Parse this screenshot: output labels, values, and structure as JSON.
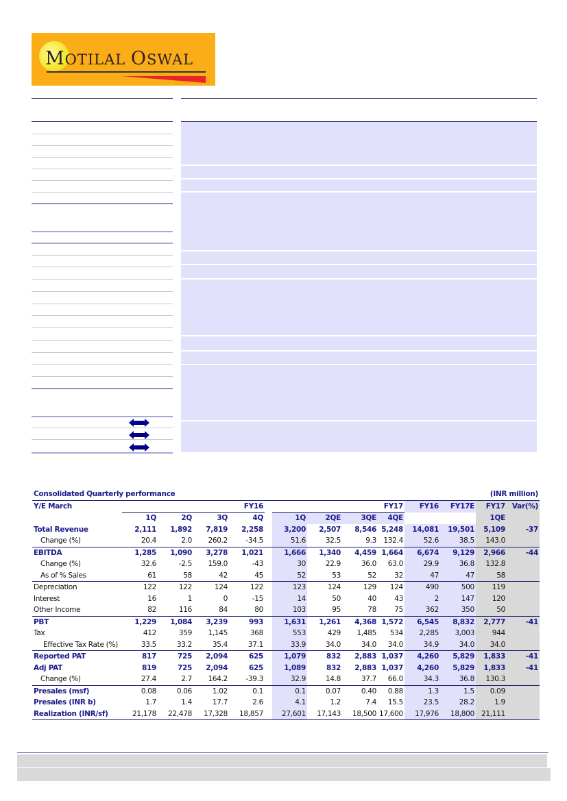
{
  "logo": {
    "text": "Motilal Oswal",
    "brand_color": "#fbad18"
  },
  "table": {
    "title": "Consolidated Quarterly performance",
    "unit": "(INR million)",
    "ye_label": "Y/E March",
    "groups": {
      "fy16": "FY16",
      "fy17": "FY17",
      "fy16_annual": "FY16",
      "fy17e": "FY17E",
      "fy17_col": "FY17",
      "var": "Var(%)"
    },
    "subheaders": [
      "1Q",
      "2Q",
      "3Q",
      "4Q",
      "1Q",
      "2QE",
      "3QE",
      "4QE",
      "",
      "",
      "1QE",
      ""
    ],
    "rows": [
      {
        "label": "Total Revenue",
        "values": [
          "2,111",
          "1,892",
          "7,819",
          "2,258",
          "3,200",
          "2,507",
          "8,546",
          "5,248",
          "14,081",
          "19,501",
          "5,109",
          "-37"
        ]
      },
      {
        "label": "Change (%)",
        "values": [
          "20.4",
          "2.0",
          "260.2",
          "-34.5",
          "51.6",
          "32.5",
          "9.3",
          "132.4",
          "52.6",
          "38.5",
          "143.0",
          ""
        ]
      },
      {
        "label": "EBITDA",
        "values": [
          "1,285",
          "1,090",
          "3,278",
          "1,021",
          "1,666",
          "1,340",
          "4,459",
          "1,664",
          "6,674",
          "9,129",
          "2,966",
          "-44"
        ]
      },
      {
        "label": "Change (%)",
        "values": [
          "32.6",
          "-2.5",
          "159.0",
          "-43",
          "30",
          "22.9",
          "36.0",
          "63.0",
          "29.9",
          "36.8",
          "132.8",
          ""
        ]
      },
      {
        "label": "As of % Sales",
        "values": [
          "61",
          "58",
          "42",
          "45",
          "52",
          "53",
          "52",
          "32",
          "47",
          "47",
          "58",
          ""
        ]
      },
      {
        "label": "Depreciation",
        "values": [
          "122",
          "122",
          "124",
          "122",
          "123",
          "124",
          "129",
          "124",
          "490",
          "500",
          "119",
          ""
        ]
      },
      {
        "label": "Interest",
        "values": [
          "16",
          "1",
          "0",
          "-15",
          "14",
          "50",
          "40",
          "43",
          "2",
          "147",
          "120",
          ""
        ]
      },
      {
        "label": "Other Income",
        "values": [
          "82",
          "116",
          "84",
          "80",
          "103",
          "95",
          "78",
          "75",
          "362",
          "350",
          "50",
          ""
        ]
      },
      {
        "label": "PBT",
        "values": [
          "1,229",
          "1,084",
          "3,239",
          "993",
          "1,631",
          "1,261",
          "4,368",
          "1,572",
          "6,545",
          "8,832",
          "2,777",
          "-41"
        ]
      },
      {
        "label": "Tax",
        "values": [
          "412",
          "359",
          "1,145",
          "368",
          "553",
          "429",
          "1,485",
          "534",
          "2,285",
          "3,003",
          "944",
          ""
        ]
      },
      {
        "label": "Effective Tax Rate (%)",
        "values": [
          "33.5",
          "33.2",
          "35.4",
          "37.1",
          "33.9",
          "34.0",
          "34.0",
          "34.0",
          "34.9",
          "34.0",
          "34.0",
          ""
        ]
      },
      {
        "label": "Reported PAT",
        "values": [
          "817",
          "725",
          "2,094",
          "625",
          "1,079",
          "832",
          "2,883",
          "1,037",
          "4,260",
          "5,829",
          "1,833",
          "-41"
        ]
      },
      {
        "label": "Adj PAT",
        "values": [
          "819",
          "725",
          "2,094",
          "625",
          "1,089",
          "832",
          "2,883",
          "1,037",
          "4,260",
          "5,829",
          "1,833",
          "-41"
        ]
      },
      {
        "label": "Change (%)",
        "values": [
          "27.4",
          "2.7",
          "164.2",
          "-39.3",
          "32.9",
          "14.8",
          "37.7",
          "66.0",
          "34.3",
          "36.8",
          "130.3",
          ""
        ]
      },
      {
        "label": "Presales (msf)",
        "values": [
          "0.08",
          "0.06",
          "1.02",
          "0.1",
          "0.1",
          "0.07",
          "0.40",
          "0.88",
          "1.3",
          "1.5",
          "0.09",
          ""
        ]
      },
      {
        "label": "Presales (INR b)",
        "values": [
          "1.7",
          "1.4",
          "17.7",
          "2.6",
          "4.1",
          "1.2",
          "7.4",
          "15.5",
          "23.5",
          "28.2",
          "1.9",
          ""
        ]
      },
      {
        "label": "Realization (INR/sf)",
        "values": [
          "21,178",
          "22,478",
          "17,328",
          "18,857",
          "27,601",
          "17,143",
          "18,500",
          "17,600",
          "17,976",
          "18,800",
          "21,111",
          ""
        ]
      }
    ]
  },
  "colors": {
    "accent": "#1a1a8a",
    "panel": "#e1e1fb",
    "grey": "#d9d9d9"
  }
}
